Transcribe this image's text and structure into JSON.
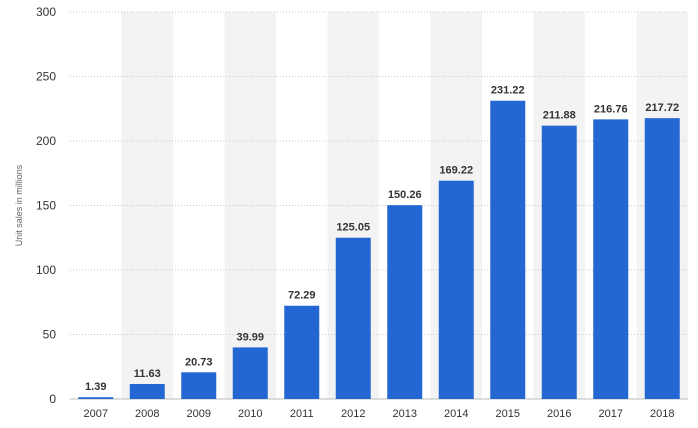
{
  "chart_data": {
    "type": "bar",
    "categories": [
      "2007",
      "2008",
      "2009",
      "2010",
      "2011",
      "2012",
      "2013",
      "2014",
      "2015",
      "2016",
      "2017",
      "2018"
    ],
    "values": [
      1.39,
      11.63,
      20.73,
      39.99,
      72.29,
      125.05,
      150.26,
      169.22,
      231.22,
      211.88,
      216.76,
      217.72
    ],
    "value_labels": [
      "1.39",
      "11.63",
      "20.73",
      "39.99",
      "72.29",
      "125.05",
      "150.26",
      "169.22",
      "231.22",
      "211.88",
      "216.76",
      "217.72"
    ],
    "yticks": [
      0,
      50,
      100,
      150,
      200,
      250,
      300
    ],
    "ylim": [
      0,
      300
    ],
    "xlabel": "",
    "ylabel": "Unit sales in millions",
    "grid": true,
    "legend": "none",
    "bar_color": "#2467d3",
    "band_color": "#f3f3f3"
  }
}
